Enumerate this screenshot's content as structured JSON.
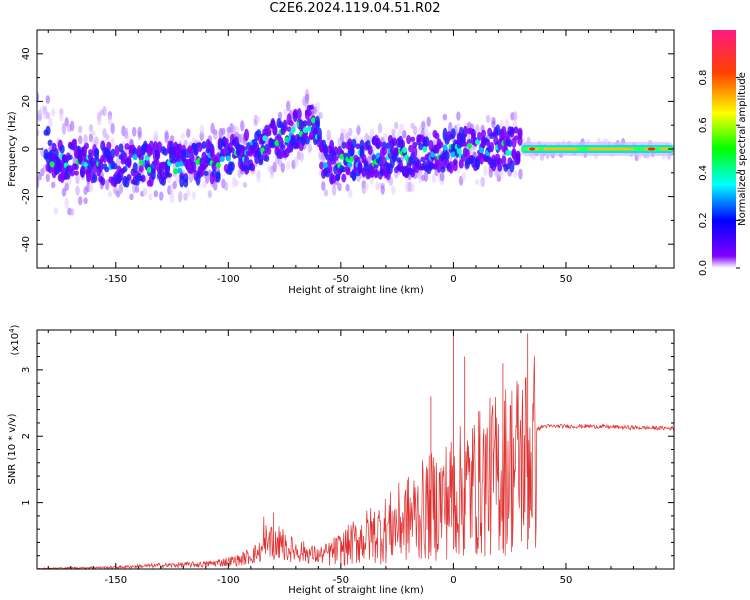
{
  "title": "C2E6.2024.119.04.51.R02",
  "colors": {
    "snr_line": "#e03030",
    "axis": "#000000",
    "colorbar": [
      "#8000ff",
      "#0000ff",
      "#00ffff",
      "#00ff00",
      "#ffff00",
      "#ff0000",
      "#ff1a80"
    ]
  },
  "chart_data": [
    {
      "type": "heatmap",
      "title": "C2E6.2024.119.04.51.R02",
      "xlabel": "Height of straight line (km)",
      "ylabel": "Frequency (Hz)",
      "xlim": [
        -185,
        98
      ],
      "ylim": [
        -50,
        50
      ],
      "xticks": [
        -150,
        -100,
        -50,
        0,
        50
      ],
      "yticks": [
        -40,
        -20,
        0,
        20,
        40
      ],
      "colorbar": {
        "label": "Normalized spectral amplitude",
        "range": [
          0,
          1
        ],
        "ticks": [
          "0.0",
          "0.2",
          "0.4",
          "0.6",
          "0.8"
        ],
        "tick_values": [
          0,
          0.2,
          0.4,
          0.6,
          0.8
        ]
      },
      "ridge": {
        "x": [
          -180,
          -150,
          -120,
          -100,
          -80,
          -62,
          -57,
          -50,
          -20,
          0,
          30,
          60,
          95
        ],
        "y": [
          -4,
          -6,
          -7,
          -4,
          3,
          11,
          -6,
          -5,
          -3,
          0,
          0,
          0,
          0
        ]
      }
    },
    {
      "type": "line",
      "xlabel": "Height of straight line (km)",
      "ylabel": "SNR (10 * v/v)",
      "y_multiplier": "(x10",
      "y_multiplier_exp": "4",
      "y_multiplier_close": ")",
      "xlim": [
        -185,
        98
      ],
      "ylim": [
        0,
        3.6
      ],
      "xticks": [
        -150,
        -100,
        -50,
        0,
        50
      ],
      "yticks": [
        1,
        2,
        3
      ],
      "series": [
        {
          "x": [
            -185,
            -150,
            -130,
            -110,
            -95,
            -85,
            -80,
            -75,
            -68,
            -60,
            -55,
            -50,
            -40,
            -30,
            -20,
            -10,
            0,
            10,
            20,
            30,
            37,
            40,
            60,
            80,
            98
          ],
          "y": [
            0.01,
            0.03,
            0.06,
            0.08,
            0.15,
            0.3,
            0.45,
            0.35,
            0.3,
            0.22,
            0.28,
            0.35,
            0.55,
            0.7,
            0.9,
            1.1,
            1.3,
            1.5,
            1.7,
            1.95,
            2.1,
            2.15,
            2.15,
            2.13,
            2.12
          ],
          "peaks": [
            {
              "x": -80,
              "y": 0.85
            },
            {
              "x": -10,
              "y": 2.6
            },
            {
              "x": 0,
              "y": 3.6
            },
            {
              "x": 5,
              "y": 3.2
            },
            {
              "x": 22,
              "y": 3.1
            },
            {
              "x": 33,
              "y": 3.55
            }
          ]
        }
      ]
    }
  ]
}
